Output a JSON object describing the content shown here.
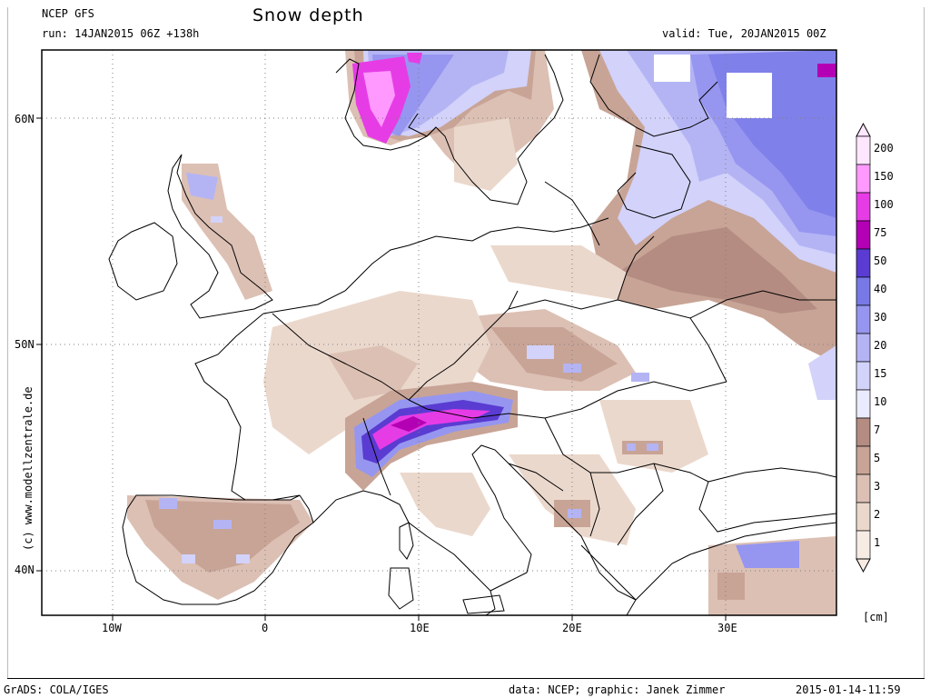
{
  "header": {
    "model": "NCEP GFS",
    "run": "run: 14JAN2015 06Z +138h",
    "title": "Snow depth",
    "valid": "valid: Tue, 20JAN2015 00Z"
  },
  "axes": {
    "lat_labels": [
      "60N",
      "50N",
      "40N"
    ],
    "lon_labels": [
      "10W",
      "0",
      "10E",
      "20E",
      "30E"
    ]
  },
  "watermark": "(c) www.modellzentrale.de",
  "legend": {
    "levels": [
      "200",
      "150",
      "100",
      "75",
      "50",
      "40",
      "30",
      "20",
      "15",
      "10",
      "7",
      "5",
      "3",
      "2",
      "1"
    ],
    "colors": [
      "#ffe6ff",
      "#ff99ff",
      "#e63ce6",
      "#b400b4",
      "#5a3cd2",
      "#7878e6",
      "#9696f0",
      "#b4b4f5",
      "#d2d2fa",
      "#ebebff",
      "#b48c82",
      "#c8a496",
      "#dcc0b4",
      "#ebd8cc",
      "#f7ece4"
    ],
    "unit": "[cm]"
  },
  "footer": {
    "left": "GrADS: COLA/IGES",
    "credit": "data: NCEP; graphic: Janek Zimmer",
    "timestamp": "2015-01-14-11:59"
  },
  "map_colors": {
    "land_line": "#000000",
    "grid": "#808080"
  }
}
